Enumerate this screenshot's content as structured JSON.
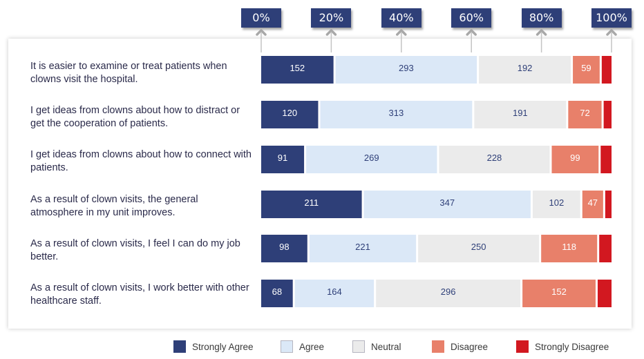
{
  "chart_data": {
    "type": "bar",
    "orientation": "horizontal",
    "stacked": "percent",
    "categories": [
      "It is easier to examine or treat patients when clowns visit the hospital.",
      "I get ideas from clowns about how to distract or get the cooperation of patients.",
      "I get ideas from clowns about how to connect with patients.",
      "As a result of clown visits, the general atmosphere in my unit improves.",
      "As a result of clown visits, I feel I can do my job better.",
      "As a result of clown visits, I work better with other healthcare staff."
    ],
    "series": [
      {
        "name": "Strongly Agree",
        "color": "#2e3f78",
        "values": [
          152,
          120,
          91,
          211,
          98,
          68
        ],
        "labels": [
          "152",
          "120",
          "91",
          "211",
          "98",
          "68"
        ]
      },
      {
        "name": "Agree",
        "color": "#dbe8f7",
        "values": [
          293,
          313,
          269,
          347,
          221,
          164
        ],
        "labels": [
          "293",
          "313",
          "269",
          "347",
          "221",
          "164"
        ]
      },
      {
        "name": "Neutral",
        "color": "#ebebeb",
        "values": [
          192,
          191,
          228,
          102,
          250,
          296
        ],
        "labels": [
          "192",
          "191",
          "228",
          "102",
          "250",
          "296"
        ]
      },
      {
        "name": "Disagree",
        "color": "#e8806a",
        "values": [
          59,
          72,
          99,
          47,
          118,
          152
        ],
        "labels": [
          "59",
          "72",
          "99",
          "47",
          "118",
          "152"
        ]
      },
      {
        "name": "Strongly Disagree",
        "color": "#d21820",
        "values": [
          20,
          16,
          22,
          13,
          25,
          28
        ],
        "labels": [
          "",
          "",
          "",
          "",
          "",
          ""
        ]
      }
    ],
    "x_ticks": [
      "0%",
      "20%",
      "40%",
      "60%",
      "80%",
      "100%"
    ],
    "xlim": [
      0,
      100
    ],
    "legend_position": "bottom",
    "grid": false
  }
}
